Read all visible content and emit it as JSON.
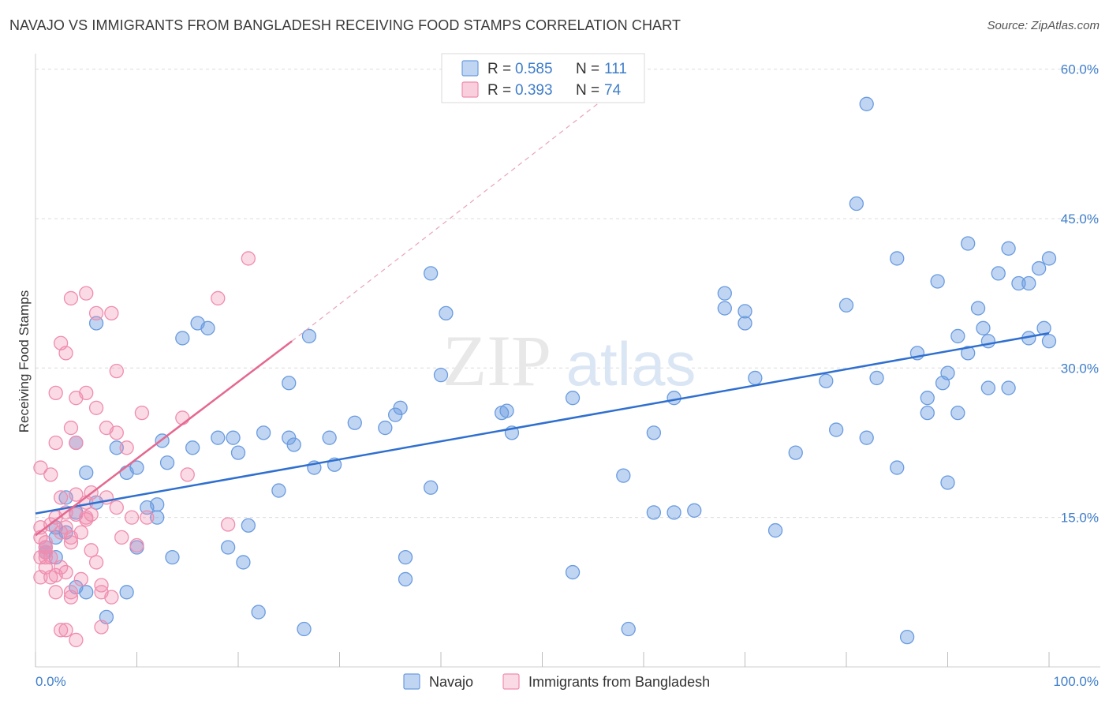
{
  "header": {
    "title": "NAVAJO VS IMMIGRANTS FROM BANGLADESH RECEIVING FOOD STAMPS CORRELATION CHART",
    "source": "Source: ZipAtlas.com"
  },
  "watermark": {
    "zip": "ZIP",
    "atlas": "atlas"
  },
  "colors": {
    "navajo": "#6a9be0",
    "navajo_line": "#2f6fcf",
    "bangladesh": "#f08cae",
    "bangladesh_line": "#e5688f",
    "tick_text": "#3f7ec9"
  },
  "chart_data": {
    "type": "scatter",
    "title": "NAVAJO VS IMMIGRANTS FROM BANGLADESH RECEIVING FOOD STAMPS CORRELATION CHART",
    "ylabel": "Receiving Food Stamps",
    "xlim": [
      0,
      100
    ],
    "ylim": [
      0,
      61
    ],
    "x_tick_labels": [
      "0.0%",
      "100.0%"
    ],
    "y_ticks": [
      15,
      30,
      45,
      60
    ],
    "y_tick_labels": [
      "15.0%",
      "30.0%",
      "45.0%",
      "60.0%"
    ],
    "grid": true,
    "legend_stats": [
      {
        "r_label": "R =",
        "r_value": "0.585",
        "n_label": "N =",
        "n_value": "111"
      },
      {
        "r_label": "R =",
        "r_value": "0.393",
        "n_label": "N =",
        "n_value": "74"
      }
    ],
    "series": [
      {
        "name": "Navajo",
        "trend": {
          "x": [
            0,
            100
          ],
          "y": [
            15.4,
            33.5
          ]
        },
        "points": [
          [
            1,
            12
          ],
          [
            1,
            11.5
          ],
          [
            2,
            14
          ],
          [
            2,
            11
          ],
          [
            2,
            13
          ],
          [
            3,
            13.5
          ],
          [
            3,
            17
          ],
          [
            4,
            15.5
          ],
          [
            4,
            22.5
          ],
          [
            4,
            8
          ],
          [
            5,
            19.5
          ],
          [
            5,
            7.5
          ],
          [
            6,
            34.5
          ],
          [
            6,
            16.5
          ],
          [
            7,
            5
          ],
          [
            8,
            22
          ],
          [
            9,
            7.5
          ],
          [
            9,
            19.5
          ],
          [
            10,
            20
          ],
          [
            10,
            12
          ],
          [
            11,
            16
          ],
          [
            12,
            16.3
          ],
          [
            12,
            15
          ],
          [
            12.5,
            22.7
          ],
          [
            13,
            20.5
          ],
          [
            13.5,
            11
          ],
          [
            14.5,
            33
          ],
          [
            15.5,
            22
          ],
          [
            16,
            34.5
          ],
          [
            17,
            34
          ],
          [
            18,
            23
          ],
          [
            19,
            12
          ],
          [
            19.5,
            23
          ],
          [
            20,
            21.5
          ],
          [
            20.5,
            10.5
          ],
          [
            21,
            14.2
          ],
          [
            22,
            5.5
          ],
          [
            22.5,
            23.5
          ],
          [
            24,
            17.7
          ],
          [
            25,
            28.5
          ],
          [
            25,
            23
          ],
          [
            25.5,
            22.3
          ],
          [
            26.5,
            3.8
          ],
          [
            27,
            33.2
          ],
          [
            27.5,
            20
          ],
          [
            29,
            23
          ],
          [
            29.5,
            20.3
          ],
          [
            31.5,
            24.5
          ],
          [
            34.5,
            24
          ],
          [
            35.5,
            25.3
          ],
          [
            36,
            26
          ],
          [
            36.5,
            11
          ],
          [
            36.5,
            8.8
          ],
          [
            39,
            39.5
          ],
          [
            39,
            18
          ],
          [
            40,
            29.3
          ],
          [
            40.5,
            35.5
          ],
          [
            46,
            25.5
          ],
          [
            46.5,
            25.7
          ],
          [
            47,
            23.5
          ],
          [
            53,
            27
          ],
          [
            53,
            9.5
          ],
          [
            58,
            19.2
          ],
          [
            58.5,
            3.8
          ],
          [
            61,
            15.5
          ],
          [
            61,
            23.5
          ],
          [
            63,
            27
          ],
          [
            63,
            15.5
          ],
          [
            65,
            15.7
          ],
          [
            68,
            37.5
          ],
          [
            68,
            36
          ],
          [
            70,
            34.5
          ],
          [
            70,
            35.7
          ],
          [
            71,
            29
          ],
          [
            73,
            13.7
          ],
          [
            75,
            21.5
          ],
          [
            78,
            28.7
          ],
          [
            79,
            23.8
          ],
          [
            80,
            36.3
          ],
          [
            81,
            46.5
          ],
          [
            82,
            56.5
          ],
          [
            82,
            23
          ],
          [
            83,
            29
          ],
          [
            85,
            41
          ],
          [
            85,
            20
          ],
          [
            86,
            3
          ],
          [
            87,
            31.5
          ],
          [
            88,
            25.5
          ],
          [
            88,
            27
          ],
          [
            89,
            38.7
          ],
          [
            89.5,
            28.5
          ],
          [
            90,
            18.5
          ],
          [
            90,
            29.5
          ],
          [
            91,
            33.2
          ],
          [
            91,
            25.5
          ],
          [
            92,
            42.5
          ],
          [
            92,
            31.5
          ],
          [
            93,
            36
          ],
          [
            93.5,
            34
          ],
          [
            94,
            28
          ],
          [
            94,
            32.7
          ],
          [
            95,
            39.5
          ],
          [
            96,
            28
          ],
          [
            96,
            42
          ],
          [
            97,
            38.5
          ],
          [
            98,
            33
          ],
          [
            98,
            38.5
          ],
          [
            99,
            40
          ],
          [
            99.5,
            34
          ],
          [
            100,
            41
          ],
          [
            100,
            32.7
          ]
        ]
      },
      {
        "name": "Immigrants from Bangladesh",
        "trend": {
          "x": [
            0,
            25.3
          ],
          "y": [
            13.2,
            32.7
          ]
        },
        "trend_extension": {
          "x": [
            25.3,
            56.7
          ],
          "y": [
            32.7,
            57.5
          ]
        },
        "points": [
          [
            0.5,
            11
          ],
          [
            0.5,
            13
          ],
          [
            0.5,
            9
          ],
          [
            0.5,
            14
          ],
          [
            0.5,
            20
          ],
          [
            1,
            12
          ],
          [
            1,
            11
          ],
          [
            1,
            12.5
          ],
          [
            1,
            10
          ],
          [
            1,
            11.5
          ],
          [
            1.5,
            19.3
          ],
          [
            1.5,
            14.3
          ],
          [
            1.5,
            9
          ],
          [
            1.5,
            11
          ],
          [
            2,
            9.2
          ],
          [
            2,
            7.5
          ],
          [
            2,
            15
          ],
          [
            2,
            22.5
          ],
          [
            2,
            27.5
          ],
          [
            2.5,
            32.5
          ],
          [
            2.5,
            13.5
          ],
          [
            2.5,
            10
          ],
          [
            2.5,
            17
          ],
          [
            2.5,
            3.7
          ],
          [
            3,
            15.5
          ],
          [
            3,
            14
          ],
          [
            3,
            9.5
          ],
          [
            3,
            3.7
          ],
          [
            3,
            31.5
          ],
          [
            3.5,
            37
          ],
          [
            3.5,
            24
          ],
          [
            3.5,
            13
          ],
          [
            3.5,
            7.5
          ],
          [
            3.5,
            7
          ],
          [
            3.5,
            12.5
          ],
          [
            4,
            27
          ],
          [
            4,
            2.7
          ],
          [
            4,
            22.5
          ],
          [
            4,
            17.3
          ],
          [
            4,
            15.3
          ],
          [
            4.5,
            8.8
          ],
          [
            4.5,
            13.5
          ],
          [
            5,
            37.5
          ],
          [
            5,
            15
          ],
          [
            5,
            16.5
          ],
          [
            5,
            14.8
          ],
          [
            5,
            27.5
          ],
          [
            5.5,
            15.3
          ],
          [
            5.5,
            11.7
          ],
          [
            5.5,
            17.5
          ],
          [
            6,
            10.5
          ],
          [
            6,
            35.5
          ],
          [
            6,
            26
          ],
          [
            6.5,
            8.2
          ],
          [
            6.5,
            7.5
          ],
          [
            6.5,
            4
          ],
          [
            7,
            24
          ],
          [
            7,
            17
          ],
          [
            7.5,
            35.5
          ],
          [
            7.5,
            7
          ],
          [
            8,
            29.7
          ],
          [
            8,
            23.5
          ],
          [
            8,
            16
          ],
          [
            8.5,
            13
          ],
          [
            9,
            22
          ],
          [
            9.5,
            15
          ],
          [
            10,
            12.2
          ],
          [
            10.5,
            25.5
          ],
          [
            11,
            15
          ],
          [
            14.5,
            25
          ],
          [
            15,
            19.3
          ],
          [
            18,
            37
          ],
          [
            19,
            14.3
          ],
          [
            21,
            41
          ]
        ]
      }
    ]
  }
}
